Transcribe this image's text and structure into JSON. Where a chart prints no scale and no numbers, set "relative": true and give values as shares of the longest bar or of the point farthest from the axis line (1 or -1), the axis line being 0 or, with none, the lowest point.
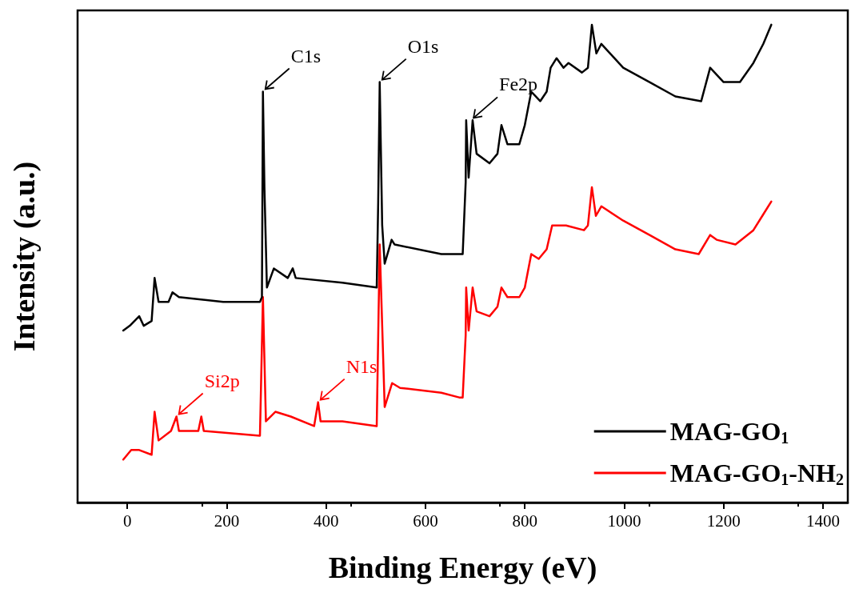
{
  "chart_data": {
    "type": "line",
    "relative": true,
    "xlabel": "Binding Energy (eV)",
    "ylabel": "Intensity (a.u.)",
    "xlim": [
      -100,
      1450
    ],
    "xticks": [
      0,
      200,
      400,
      600,
      800,
      1000,
      1200,
      1400
    ],
    "legend": "bottom right",
    "marker": "none",
    "line_style": "solid",
    "annotations": [
      {
        "text": "C1s",
        "x": 273,
        "y": 0.86
      },
      {
        "text": "O1s",
        "x": 508,
        "y": 0.88
      },
      {
        "text": "Fe2p",
        "x": 692,
        "y": 0.8
      },
      {
        "text": "Si2p",
        "x": 99,
        "y": 0.18
      },
      {
        "text": "N1s",
        "x": 384,
        "y": 0.21
      }
    ],
    "series": [
      {
        "name": "MAG-GO$_{1}$",
        "color": "#000000",
        "x": [
          -8,
          5,
          24,
          33,
          49,
          55,
          63,
          83,
          91,
          104,
          193,
          267,
          271,
          273,
          276,
          281,
          295,
          323,
          333,
          339,
          433,
          502,
          505,
          508,
          513,
          518,
          532,
          538,
          632,
          664,
          675,
          681,
          682,
          687,
          695,
          703,
          729,
          745,
          753,
          765,
          789,
          800,
          813,
          831,
          844,
          852,
          864,
          878,
          888,
          915,
          927,
          935,
          944,
          954,
          998,
          1051,
          1103,
          1155,
          1173,
          1200,
          1233,
          1260,
          1280,
          1296
        ],
        "values": [
          0.36,
          0.37,
          0.39,
          0.37,
          0.38,
          0.47,
          0.42,
          0.42,
          0.44,
          0.43,
          0.42,
          0.42,
          0.43,
          0.86,
          0.66,
          0.45,
          0.49,
          0.47,
          0.49,
          0.47,
          0.46,
          0.45,
          0.63,
          0.88,
          0.58,
          0.5,
          0.55,
          0.54,
          0.52,
          0.52,
          0.52,
          0.67,
          0.8,
          0.68,
          0.8,
          0.73,
          0.71,
          0.73,
          0.79,
          0.75,
          0.75,
          0.79,
          0.86,
          0.84,
          0.86,
          0.91,
          0.93,
          0.91,
          0.92,
          0.9,
          0.91,
          1.0,
          0.94,
          0.96,
          0.91,
          0.88,
          0.85,
          0.84,
          0.91,
          0.88,
          0.88,
          0.92,
          0.96,
          1.0
        ]
      },
      {
        "name": "MAG-GO$_{1}$-NH$_{2}$",
        "color": "#ff0000",
        "x": [
          -8,
          8,
          24,
          49,
          55,
          63,
          88,
          99,
          104,
          143,
          149,
          154,
          267,
          273,
          279,
          298,
          329,
          376,
          384,
          389,
          433,
          502,
          508,
          518,
          533,
          549,
          632,
          668,
          675,
          681,
          682,
          687,
          695,
          703,
          729,
          745,
          753,
          765,
          789,
          800,
          813,
          828,
          844,
          855,
          864,
          883,
          919,
          927,
          935,
          943,
          954,
          998,
          1051,
          1103,
          1150,
          1173,
          1186,
          1224,
          1260,
          1278,
          1296
        ],
        "values": [
          0.09,
          0.11,
          0.11,
          0.1,
          0.19,
          0.13,
          0.15,
          0.18,
          0.15,
          0.15,
          0.18,
          0.15,
          0.14,
          0.43,
          0.17,
          0.19,
          0.18,
          0.16,
          0.21,
          0.17,
          0.17,
          0.16,
          0.54,
          0.2,
          0.25,
          0.24,
          0.23,
          0.22,
          0.22,
          0.35,
          0.45,
          0.36,
          0.45,
          0.4,
          0.39,
          0.41,
          0.45,
          0.43,
          0.43,
          0.45,
          0.52,
          0.51,
          0.53,
          0.58,
          0.58,
          0.58,
          0.57,
          0.58,
          0.66,
          0.6,
          0.62,
          0.59,
          0.56,
          0.53,
          0.52,
          0.56,
          0.55,
          0.54,
          0.57,
          0.6,
          0.63
        ]
      }
    ]
  }
}
